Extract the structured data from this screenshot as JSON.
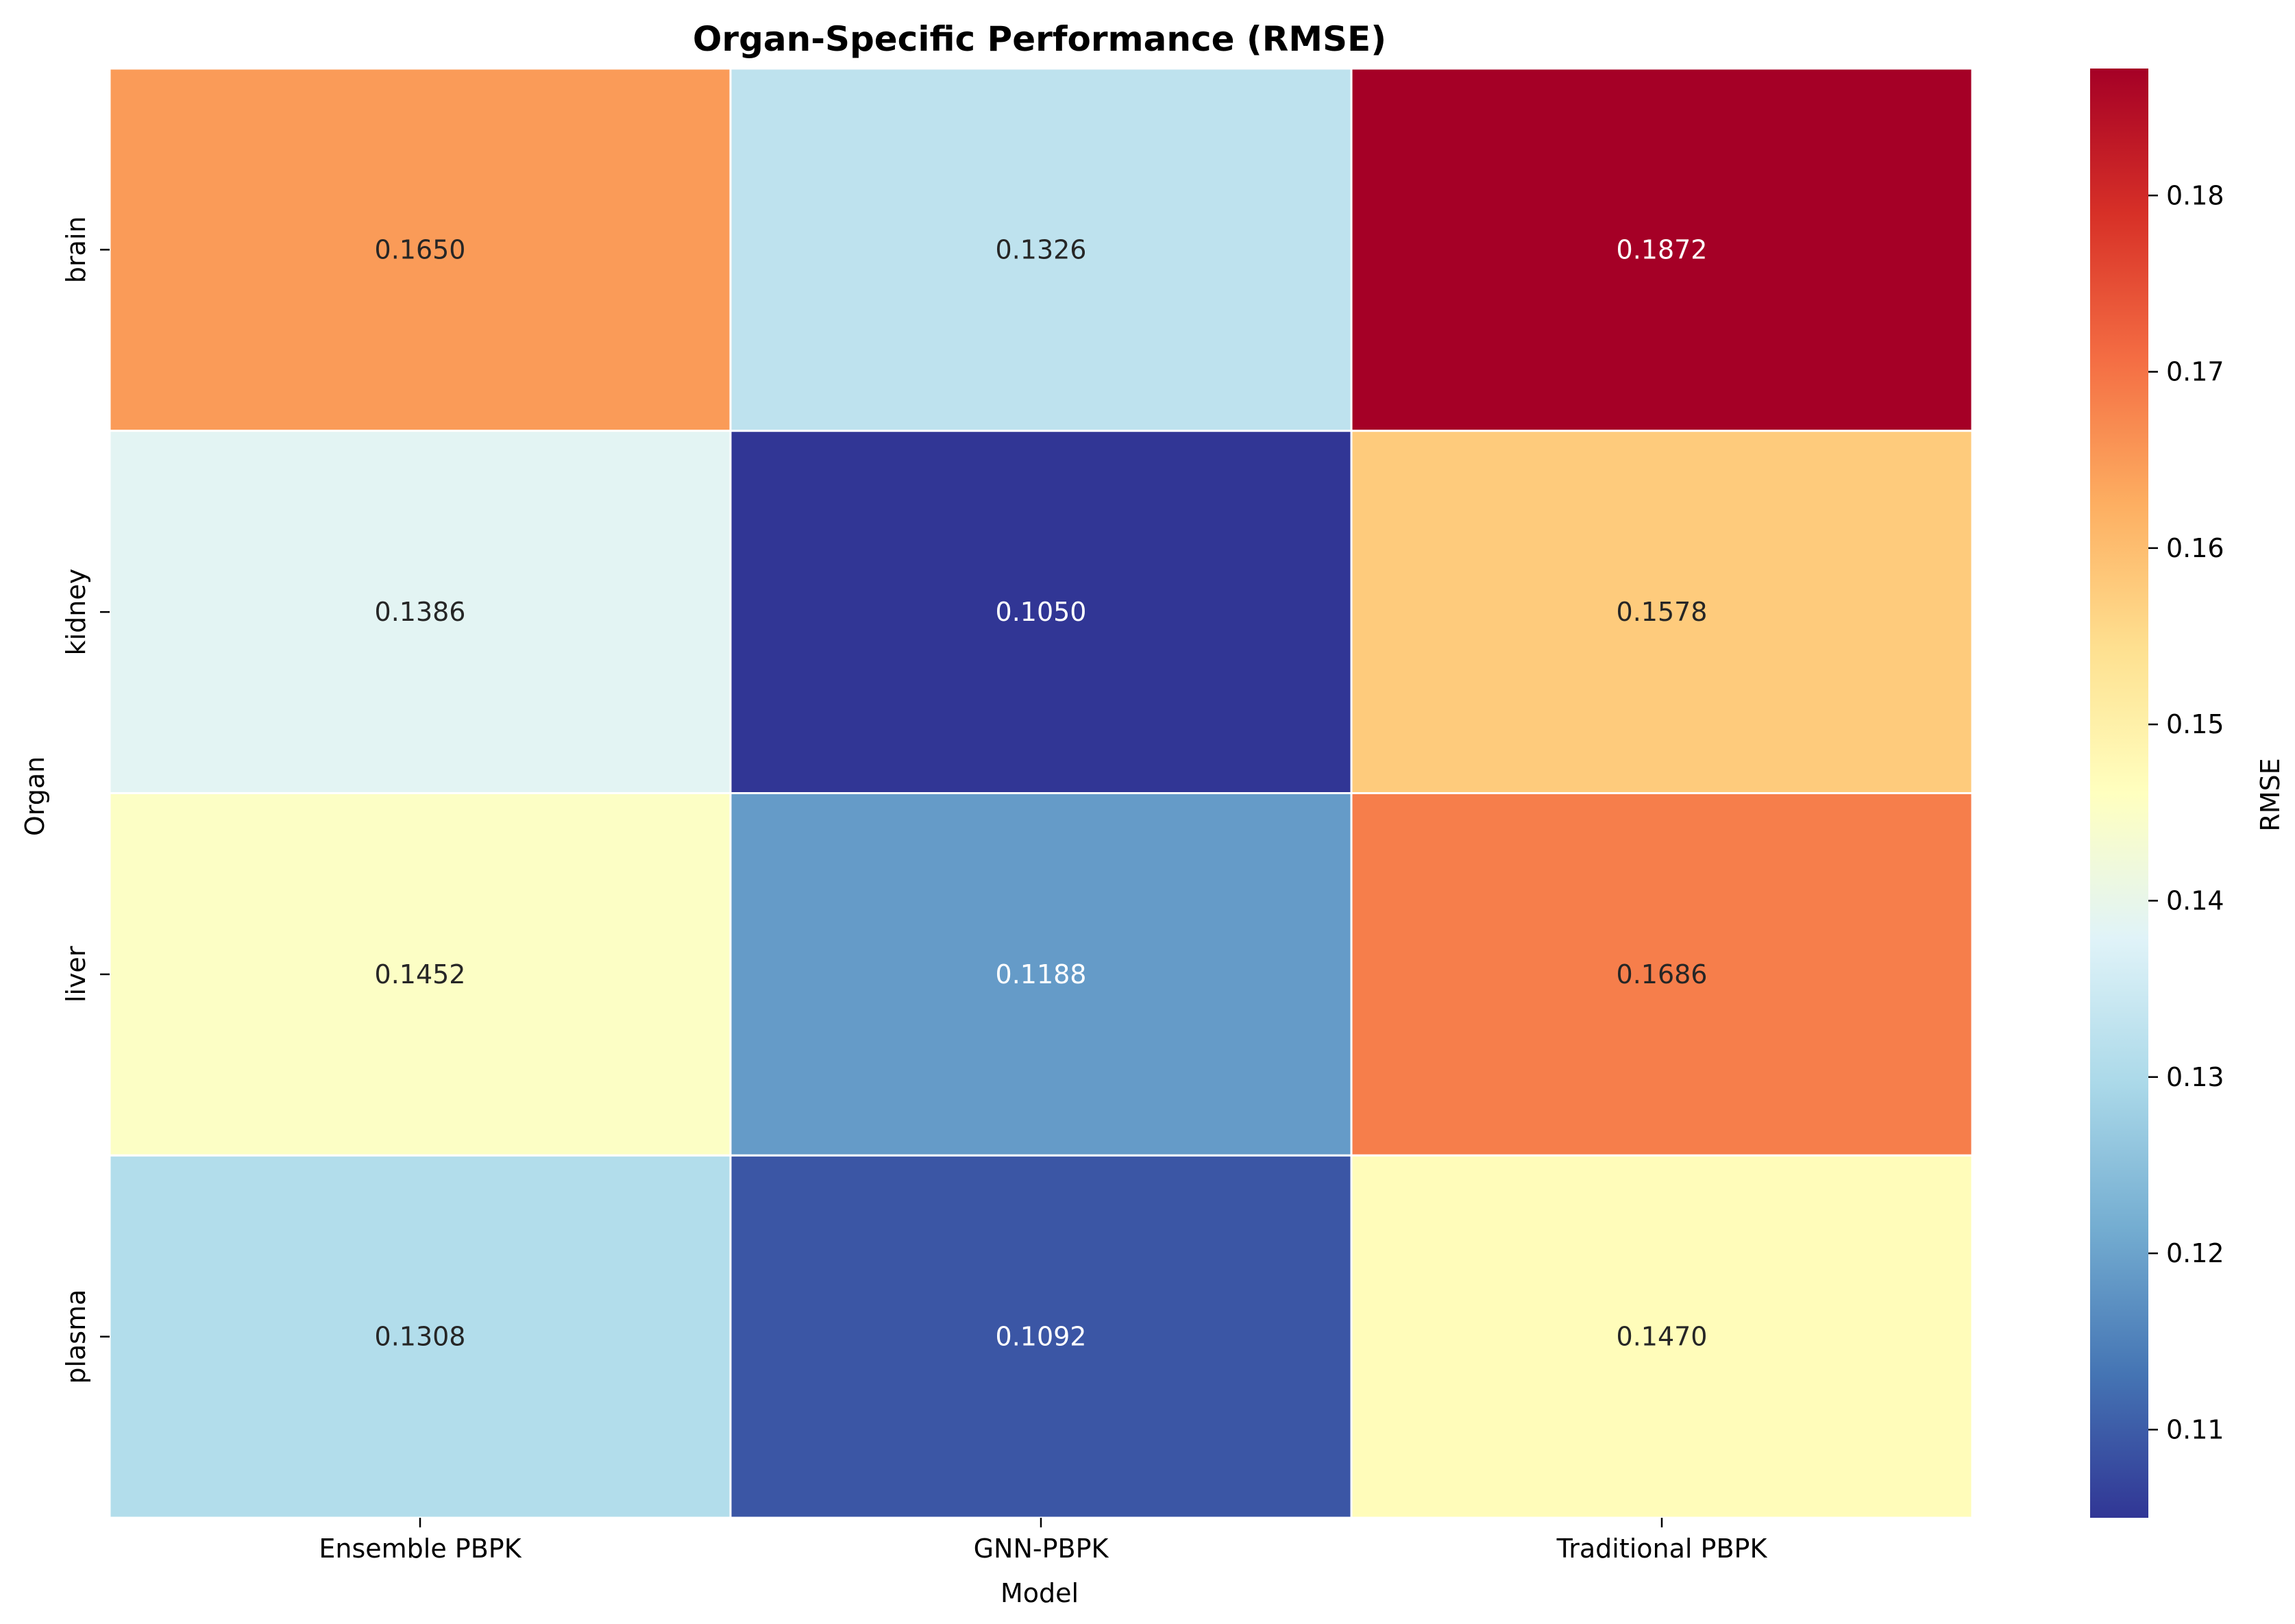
{
  "chart_data": {
    "type": "heatmap",
    "title": "Organ-Specific Performance (RMSE)",
    "xlabel": "Model",
    "ylabel": "Organ",
    "x_categories": [
      "Ensemble PBPK",
      "GNN-PBPK",
      "Traditional PBPK"
    ],
    "y_categories": [
      "brain",
      "kidney",
      "liver",
      "plasma"
    ],
    "values": [
      [
        0.165,
        0.1326,
        0.1872
      ],
      [
        0.1386,
        0.105,
        0.1578
      ],
      [
        0.1452,
        0.1188,
        0.1686
      ],
      [
        0.1308,
        0.1092,
        0.147
      ]
    ],
    "value_labels": [
      [
        "0.1650",
        "0.1326",
        "0.1872"
      ],
      [
        "0.1386",
        "0.1050",
        "0.1578"
      ],
      [
        "0.1452",
        "0.1188",
        "0.1686"
      ],
      [
        "0.1308",
        "0.1092",
        "0.1470"
      ]
    ],
    "colormap": "RdYlBu_r",
    "colorbar": {
      "label": "RMSE",
      "range": [
        0.105,
        0.1872
      ],
      "ticks": [
        0.11,
        0.12,
        0.13,
        0.14,
        0.15,
        0.16,
        0.17,
        0.18
      ],
      "tick_labels": [
        "0.11",
        "0.12",
        "0.13",
        "0.14",
        "0.15",
        "0.16",
        "0.17",
        "0.18"
      ]
    }
  }
}
